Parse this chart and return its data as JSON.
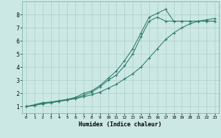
{
  "xlabel": "Humidex (Indice chaleur)",
  "background_color": "#cce8e4",
  "grid_color": "#aaccca",
  "line_color": "#2e7d6e",
  "xlim": [
    -0.5,
    23.5
  ],
  "ylim": [
    0.5,
    9.0
  ],
  "xticks": [
    0,
    1,
    2,
    3,
    4,
    5,
    6,
    7,
    8,
    9,
    10,
    11,
    12,
    13,
    14,
    15,
    16,
    17,
    18,
    19,
    20,
    21,
    22,
    23
  ],
  "yticks": [
    1,
    2,
    3,
    4,
    5,
    6,
    7,
    8
  ],
  "line1_x": [
    0,
    1,
    2,
    3,
    4,
    5,
    6,
    7,
    8,
    9,
    10,
    11,
    12,
    13,
    14,
    15,
    16,
    17,
    18,
    19,
    20,
    21,
    22,
    23
  ],
  "line1_y": [
    1.0,
    1.15,
    1.3,
    1.35,
    1.45,
    1.55,
    1.7,
    2.0,
    2.2,
    2.6,
    3.15,
    3.7,
    4.5,
    5.4,
    6.6,
    7.8,
    8.1,
    8.4,
    7.5,
    7.5,
    7.5,
    7.5,
    7.5,
    7.5
  ],
  "line2_x": [
    0,
    1,
    2,
    3,
    4,
    5,
    6,
    7,
    8,
    9,
    10,
    11,
    12,
    13,
    14,
    15,
    16,
    17,
    18,
    19,
    20,
    21,
    22,
    23
  ],
  "line2_y": [
    1.0,
    1.1,
    1.25,
    1.3,
    1.4,
    1.5,
    1.65,
    1.85,
    2.1,
    2.5,
    3.0,
    3.4,
    4.1,
    5.0,
    6.3,
    7.5,
    7.8,
    7.5,
    7.5,
    7.5,
    7.5,
    7.5,
    7.5,
    7.5
  ],
  "line3_x": [
    0,
    1,
    2,
    3,
    4,
    5,
    6,
    7,
    8,
    9,
    10,
    11,
    12,
    13,
    14,
    15,
    16,
    17,
    18,
    19,
    20,
    21,
    22,
    23
  ],
  "line3_y": [
    1.0,
    1.1,
    1.2,
    1.3,
    1.4,
    1.5,
    1.6,
    1.75,
    1.9,
    2.1,
    2.4,
    2.7,
    3.1,
    3.5,
    4.0,
    4.7,
    5.4,
    6.1,
    6.6,
    7.0,
    7.3,
    7.5,
    7.6,
    7.7
  ]
}
